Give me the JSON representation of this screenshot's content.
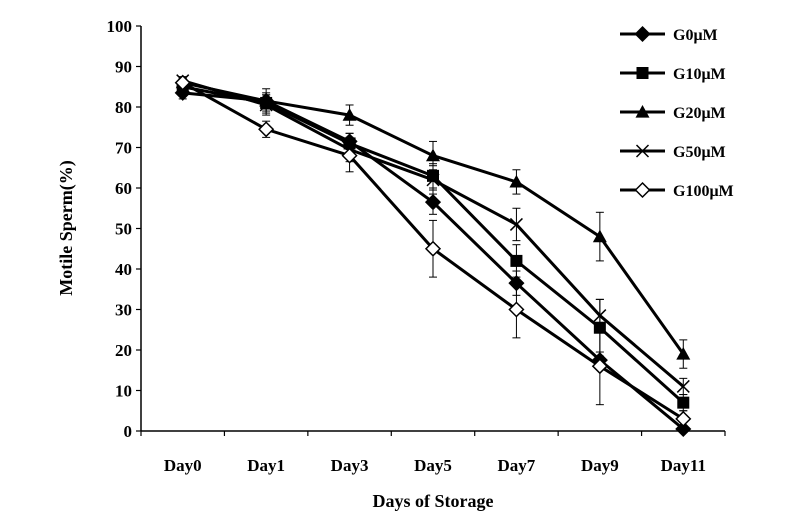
{
  "chart_data": {
    "type": "line",
    "title": "",
    "xlabel": "Days of Storage",
    "ylabel": "Motile Sperm(%)",
    "categories": [
      "Day0",
      "Day1",
      "Day3",
      "Day5",
      "Day7",
      "Day9",
      "Day11"
    ],
    "ylim": [
      0,
      100
    ],
    "yticks": [
      "0",
      "10",
      "20",
      "30",
      "40",
      "50",
      "60",
      "70",
      "80",
      "90",
      "100"
    ],
    "grid": false,
    "legend_position": "top-right",
    "series": [
      {
        "name": "G0μM",
        "marker": "diamond-filled",
        "values": [
          83.5,
          81.5,
          71.5,
          56.5,
          36.5,
          17.5,
          0.5
        ],
        "errors": [
          1.5,
          2.0,
          2.0,
          3.0,
          3.0,
          2.0,
          0.5
        ]
      },
      {
        "name": "G10μM",
        "marker": "square-filled",
        "values": [
          85,
          81,
          71,
          63,
          42,
          25.5,
          7
        ],
        "errors": [
          1.5,
          2.0,
          2.5,
          3.0,
          4.0,
          7.0,
          2.0
        ]
      },
      {
        "name": "G20μM",
        "marker": "triangle-filled",
        "values": [
          86,
          81.5,
          78,
          68,
          61.5,
          48,
          19
        ],
        "errors": [
          1.0,
          3.0,
          2.5,
          3.5,
          3.0,
          6.0,
          3.5
        ]
      },
      {
        "name": "G50μM",
        "marker": "x",
        "values": [
          86.5,
          80.5,
          69.5,
          62,
          51,
          28.5,
          11
        ],
        "errors": [
          1.0,
          2.5,
          3.0,
          3.5,
          4.0,
          4.0,
          2.0
        ]
      },
      {
        "name": "G100μM",
        "marker": "diamond-open",
        "values": [
          86,
          74.5,
          68,
          45,
          30,
          16,
          3
        ],
        "errors": [
          1.0,
          2.0,
          4.0,
          7.0,
          7.0,
          9.5,
          2.0
        ]
      }
    ]
  }
}
